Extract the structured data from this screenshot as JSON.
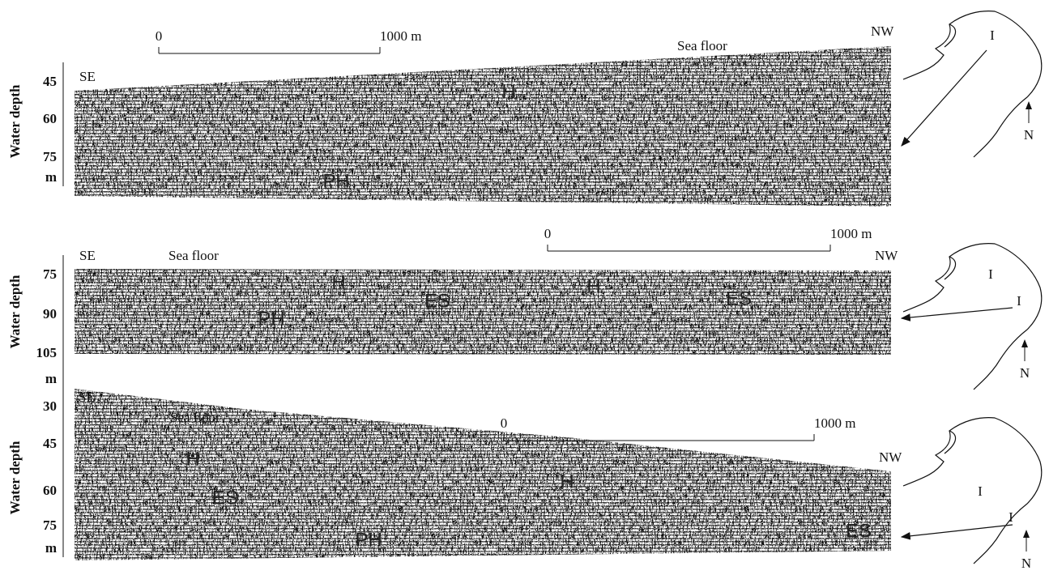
{
  "panels": [
    {
      "axis_label": "Water depth",
      "ticks": [
        "45",
        "60",
        "75",
        "m"
      ],
      "left_label": "SE",
      "right_label": "NW",
      "sea_floor": "Sea floor",
      "scale": {
        "start": "0",
        "end": "1000 m"
      },
      "features": [
        "H",
        "PH"
      ],
      "map": {
        "labels": [
          "I"
        ],
        "north": "N"
      }
    },
    {
      "axis_label": "Water depth",
      "ticks": [
        "75",
        "90",
        "105",
        "m"
      ],
      "left_label": "SE",
      "right_label": "NW",
      "sea_floor": "Sea floor",
      "scale": {
        "start": "0",
        "end": "1000 m"
      },
      "features": [
        "H",
        "H",
        "ES",
        "ES",
        "PH"
      ],
      "map": {
        "labels": [
          "I",
          "I"
        ],
        "north": "N"
      }
    },
    {
      "axis_label": "Water depth",
      "ticks": [
        "30",
        "45",
        "60",
        "75",
        "m"
      ],
      "left_label": "SE",
      "right_label": "NW",
      "sea_floor": "Sea floor",
      "scale": {
        "start": "0",
        "end": "1000 m"
      },
      "features": [
        "H",
        "ES",
        "H",
        "PH",
        "ES"
      ],
      "map": {
        "labels": [
          "I",
          "I"
        ],
        "north": "N"
      }
    }
  ]
}
